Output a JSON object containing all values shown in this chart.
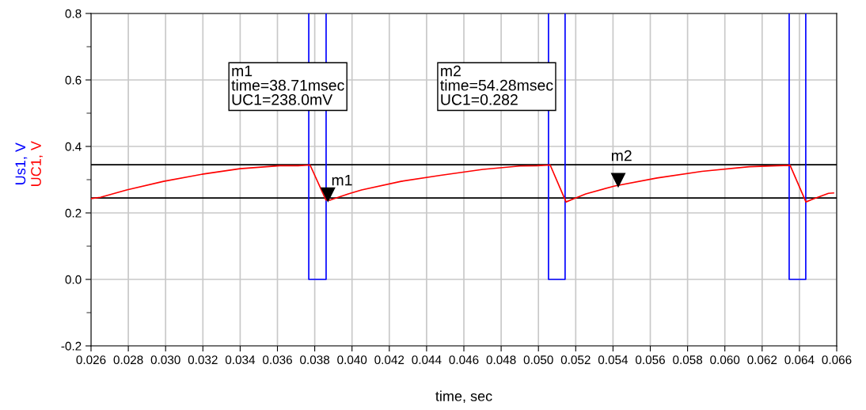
{
  "chart_data": {
    "type": "line",
    "xlabel": "time, sec",
    "xlim": [
      0.026,
      0.066
    ],
    "xticks": [
      {
        "value": 0.026,
        "label": "0.026"
      },
      {
        "value": 0.028,
        "label": "0.028"
      },
      {
        "value": 0.03,
        "label": "0.030"
      },
      {
        "value": 0.032,
        "label": "0.032"
      },
      {
        "value": 0.034,
        "label": "0.034"
      },
      {
        "value": 0.036,
        "label": "0.036"
      },
      {
        "value": 0.038,
        "label": "0.038"
      },
      {
        "value": 0.04,
        "label": "0.040"
      },
      {
        "value": 0.042,
        "label": "0.042"
      },
      {
        "value": 0.044,
        "label": "0.044"
      },
      {
        "value": 0.046,
        "label": "0.046"
      },
      {
        "value": 0.048,
        "label": "0.048"
      },
      {
        "value": 0.05,
        "label": "0.050"
      },
      {
        "value": 0.052,
        "label": "0.052"
      },
      {
        "value": 0.054,
        "label": "0.054"
      },
      {
        "value": 0.056,
        "label": "0.056"
      },
      {
        "value": 0.058,
        "label": "0.058"
      },
      {
        "value": 0.06,
        "label": "0.060"
      },
      {
        "value": 0.062,
        "label": "0.062"
      },
      {
        "value": 0.064,
        "label": "0.064"
      },
      {
        "value": 0.066,
        "label": "0.066"
      }
    ],
    "ylim": [
      -0.2,
      0.8
    ],
    "yticks": [
      {
        "value": -0.2,
        "label": "-0.2"
      },
      {
        "value": -0.1,
        "label": null
      },
      {
        "value": 0.0,
        "label": "0.0"
      },
      {
        "value": 0.1,
        "label": null
      },
      {
        "value": 0.2,
        "label": "0.2"
      },
      {
        "value": 0.3,
        "label": null
      },
      {
        "value": 0.4,
        "label": "0.4"
      },
      {
        "value": 0.5,
        "label": null
      },
      {
        "value": 0.6,
        "label": "0.6"
      },
      {
        "value": 0.7,
        "label": null
      },
      {
        "value": 0.8,
        "label": "0.8"
      }
    ],
    "grid": true,
    "legend": false,
    "marker": "none",
    "line_style": "solid",
    "series": [
      {
        "name": "Us1, V",
        "color": "#0000ff",
        "x": [
          0.03768,
          0.03768,
          0.03861,
          0.03861,
          0.04,
          0.05054,
          0.05054,
          0.05143,
          0.05143,
          0.055,
          0.06345,
          0.06345,
          0.06434,
          0.06434
        ],
        "values": [
          0.8,
          0,
          0,
          0.8,
          null,
          0.8,
          0,
          0,
          0.8,
          null,
          0.8,
          0,
          0,
          0.8
        ]
      },
      {
        "name": "UC1, V",
        "color": "#ff0000",
        "x": [
          0.026,
          0.02651,
          0.02791,
          0.02989,
          0.03202,
          0.03399,
          0.03612,
          0.03711,
          0.03775,
          0.0386,
          0.03881,
          0.03895,
          0.0398,
          0.04051,
          0.04263,
          0.04475,
          0.04702,
          0.049,
          0.04992,
          0.05063,
          0.05148,
          0.05183,
          0.05254,
          0.05409,
          0.05636,
          0.05877,
          0.06131,
          0.0628,
          0.0635,
          0.06435,
          0.0647,
          0.06556,
          0.06583
        ],
        "values": [
          0.243,
          0.247,
          0.269,
          0.295,
          0.317,
          0.333,
          0.342,
          0.342,
          0.344,
          0.239,
          0.238,
          0.241,
          0.257,
          0.269,
          0.295,
          0.313,
          0.331,
          0.341,
          0.342,
          0.344,
          0.233,
          0.241,
          0.257,
          0.281,
          0.305,
          0.325,
          0.339,
          0.342,
          0.343,
          0.233,
          0.241,
          0.259,
          0.26
        ]
      }
    ],
    "ref_lines": [
      {
        "axis": "y",
        "value": 0.345,
        "color": "#000000"
      },
      {
        "axis": "y",
        "value": 0.245,
        "color": "#000000"
      }
    ],
    "annotations": [
      {
        "text": "m1",
        "x": 0.03871,
        "y": 0.238
      },
      {
        "text": "m2",
        "x": 0.05428,
        "y": 0.282
      },
      "m1\ntime=38.71msec\nUC1=238.0mV",
      "m2\ntime=54.28msec\nUC1=0.282"
    ]
  }
}
